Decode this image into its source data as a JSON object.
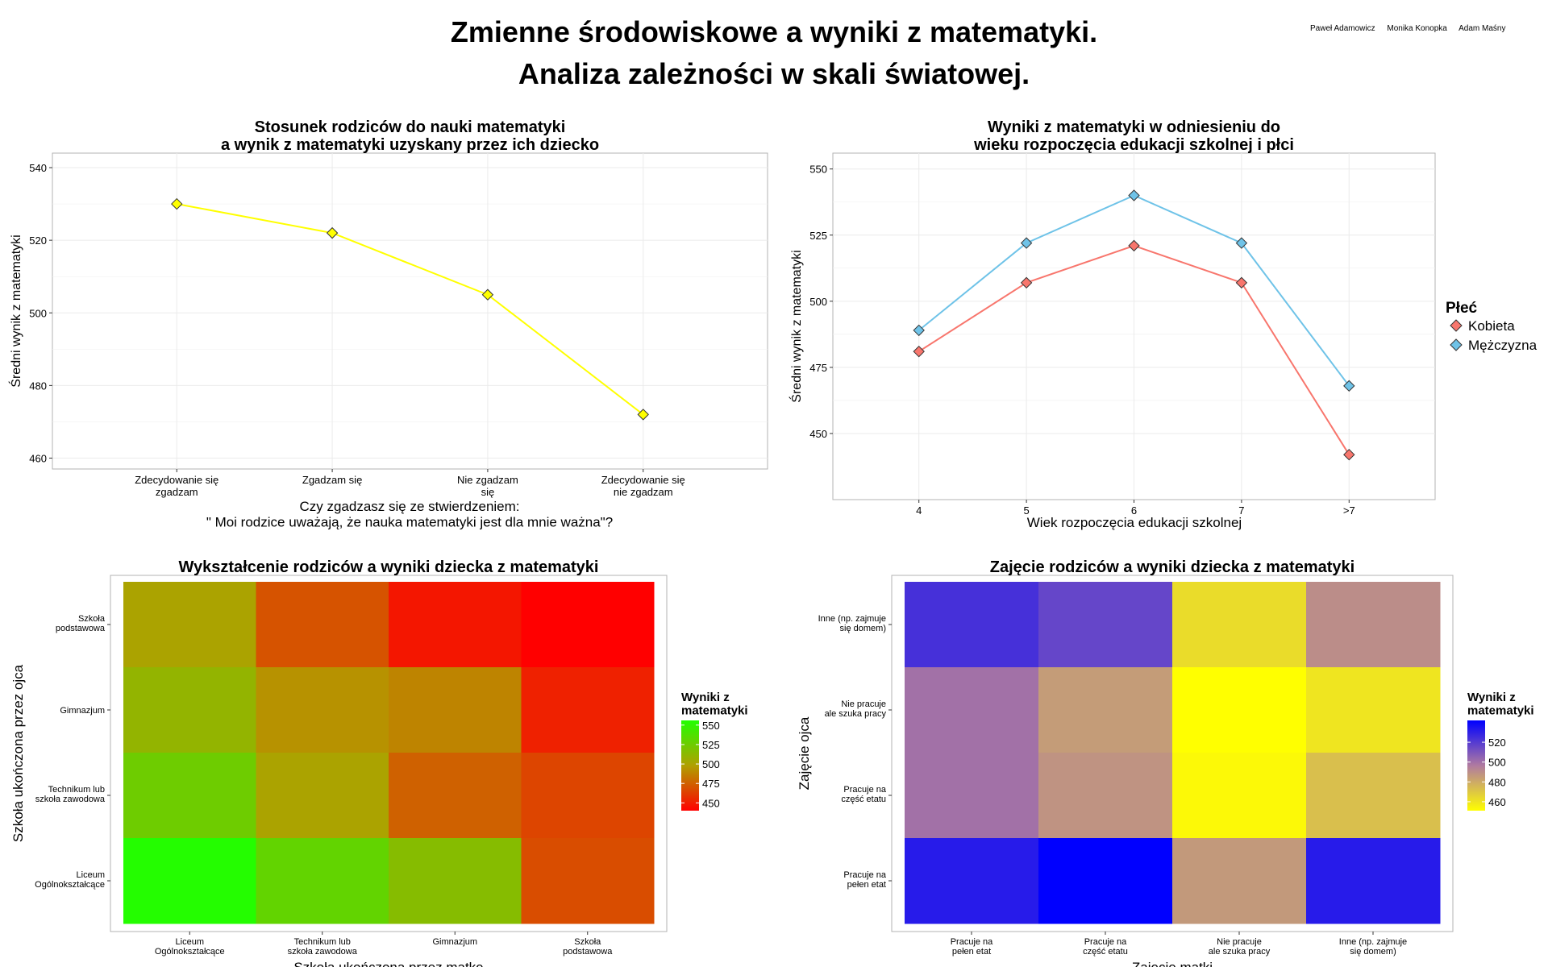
{
  "page": {
    "title_line1": "Zmienne środowiskowe a wyniki z matematyki.",
    "title_line2": "Analiza zależności w skali światowej.",
    "authors": [
      "Paweł Adamowicz",
      "Monika Konopka",
      "Adam Maśny"
    ]
  },
  "chart_data": [
    {
      "type": "line",
      "title": [
        "Stosunek rodziców do nauki matematyki",
        "a wynik z matematyki uzyskany przez ich dziecko"
      ],
      "xlabel": [
        "Czy zgadzasz się ze stwierdzeniem:",
        "\" Moi rodzice uważają, że nauka matematyki jest dla mnie ważna\"?"
      ],
      "ylabel": "Średni wynik z matematyki",
      "categories": [
        [
          "Zdecydowanie się",
          "zgadzam"
        ],
        [
          "Zgadzam się"
        ],
        [
          "Nie zgadzam",
          "się"
        ],
        [
          "Zdecydowanie się",
          "nie zgadzam"
        ]
      ],
      "values": [
        530,
        522,
        505,
        472
      ],
      "ylim": [
        457,
        544
      ],
      "yticks": [
        460,
        480,
        500,
        520,
        540
      ],
      "color": "#ffff00",
      "marker": "diamond",
      "grid": true
    },
    {
      "type": "line",
      "title": [
        "Wyniki z matematyki w odniesieniu do",
        "wieku rozpoczęcia edukacji szkolnej i płci"
      ],
      "xlabel": "Wiek rozpoczęcia edukacji szkolnej",
      "ylabel": "Średni wynik z matematyki",
      "categories": [
        "4",
        "5",
        "6",
        "7",
        ">7"
      ],
      "series": [
        {
          "name": "Kobieta",
          "values": [
            481,
            507,
            521,
            507,
            442
          ],
          "color": "#f8766d"
        },
        {
          "name": "Mężczyzna",
          "values": [
            489,
            522,
            540,
            522,
            468
          ],
          "color": "#6fc3e8"
        }
      ],
      "ylim": [
        425,
        556
      ],
      "yticks": [
        450,
        475,
        500,
        525,
        550
      ],
      "legend_title": "Płeć",
      "legend_position": "right",
      "grid": true
    },
    {
      "type": "heatmap",
      "title": "Wykształcenie rodziców a wyniki dziecka z matematyki",
      "xlabel": "Szkoła ukończona przez matkę",
      "ylabel": "Szkoła ukończona przez ojca",
      "x_categories": [
        [
          "Liceum",
          "Ogólnokształcące"
        ],
        [
          "Technikum lub",
          "szkoła zawodowa"
        ],
        [
          "Gimnazjum"
        ],
        [
          "Szkoła",
          "podstawowa"
        ]
      ],
      "y_categories": [
        [
          "Szkoła",
          "podstawowa"
        ],
        [
          "Gimnazjum"
        ],
        [
          "Technikum lub",
          "szkoła zawodowa"
        ],
        [
          "Liceum",
          "Ogólnokształcące"
        ]
      ],
      "values": [
        [
          500,
          470,
          448,
          440
        ],
        [
          510,
          493,
          488,
          452
        ],
        [
          525,
          500,
          475,
          465
        ],
        [
          555,
          530,
          515,
          468
        ]
      ],
      "value_range": [
        440,
        556
      ],
      "colors": {
        "low": "#ff0000",
        "mid": "#b0a000",
        "high": "#22ff00"
      },
      "legend_title": [
        "Wyniki z",
        "matematyki"
      ],
      "legend_ticks": [
        450,
        475,
        500,
        525,
        550
      ],
      "legend_position": "right"
    },
    {
      "type": "heatmap",
      "title": "Zajęcie rodziców a wyniki dziecka z matematyki",
      "xlabel": "Zajęcie matki",
      "ylabel": "Zajęcie ojca",
      "x_categories": [
        [
          "Pracuje na",
          "pełen etat"
        ],
        [
          "Pracuje na",
          "część etatu"
        ],
        [
          "Nie pracuje",
          "ale szuka pracy"
        ],
        [
          "Inne (np. zajmuje",
          "się domem)"
        ]
      ],
      "y_categories": [
        [
          "Inne (np. zajmuje",
          "się domem)"
        ],
        [
          "Nie pracuje",
          "ale szuka pracy"
        ],
        [
          "Pracuje na",
          "część etatu"
        ],
        [
          "Pracuje na",
          "pełen etat"
        ]
      ],
      "values": [
        [
          524,
          516,
          463,
          490
        ],
        [
          500,
          485,
          451,
          460
        ],
        [
          500,
          488,
          453,
          473
        ],
        [
          532,
          542,
          486,
          532
        ]
      ],
      "value_range": [
        451,
        542
      ],
      "colors": {
        "low": "#ffff00",
        "mid": "#b07aa0",
        "high": "#0000ff"
      },
      "legend_title": [
        "Wyniki z",
        "matematyki"
      ],
      "legend_ticks": [
        460,
        480,
        500,
        520
      ],
      "legend_position": "right"
    }
  ]
}
